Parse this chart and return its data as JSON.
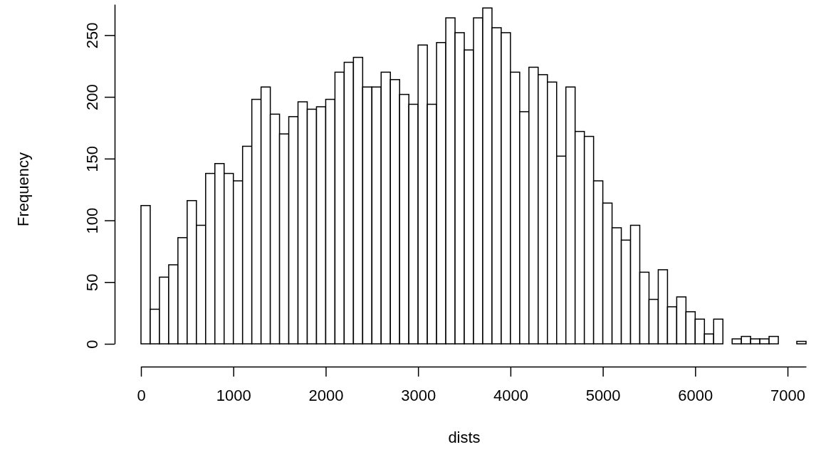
{
  "chart_data": {
    "type": "histogram",
    "xlabel": "dists",
    "ylabel": "Frequency",
    "bins": [
      0,
      100,
      200,
      300,
      400,
      500,
      600,
      700,
      800,
      900,
      1000,
      1100,
      1200,
      1300,
      1400,
      1500,
      1600,
      1700,
      1800,
      1900,
      2000,
      2100,
      2200,
      2300,
      2400,
      2500,
      2600,
      2700,
      2800,
      2900,
      3000,
      3100,
      3200,
      3300,
      3400,
      3500,
      3600,
      3700,
      3800,
      3900,
      4000,
      4100,
      4200,
      4300,
      4400,
      4500,
      4600,
      4700,
      4800,
      4900,
      5000,
      5100,
      5200,
      5300,
      5400,
      5500,
      5600,
      5700,
      5800,
      5900,
      6000,
      6100,
      6200,
      6300,
      6400,
      6500,
      6600,
      6700,
      6800,
      6900,
      7000,
      7100,
      7200
    ],
    "values": [
      112,
      28,
      54,
      64,
      86,
      116,
      96,
      138,
      146,
      138,
      132,
      160,
      198,
      208,
      186,
      170,
      184,
      196,
      190,
      192,
      198,
      220,
      228,
      232,
      208,
      208,
      220,
      214,
      202,
      194,
      242,
      194,
      244,
      264,
      252,
      238,
      264,
      272,
      256,
      252,
      220,
      188,
      224,
      218,
      212,
      152,
      208,
      172,
      168,
      132,
      114,
      94,
      84,
      96,
      58,
      36,
      60,
      30,
      38,
      26,
      20,
      8,
      20,
      0,
      4,
      6,
      4,
      4,
      6,
      0,
      0,
      2
    ],
    "color": "#ffffff",
    "xlim": [
      0,
      7200
    ],
    "ylim": [
      0,
      275
    ],
    "xticks": [
      0,
      1000,
      2000,
      3000,
      4000,
      5000,
      6000,
      7000
    ],
    "yticks": [
      0,
      50,
      100,
      150,
      200,
      250
    ],
    "grid": false
  }
}
